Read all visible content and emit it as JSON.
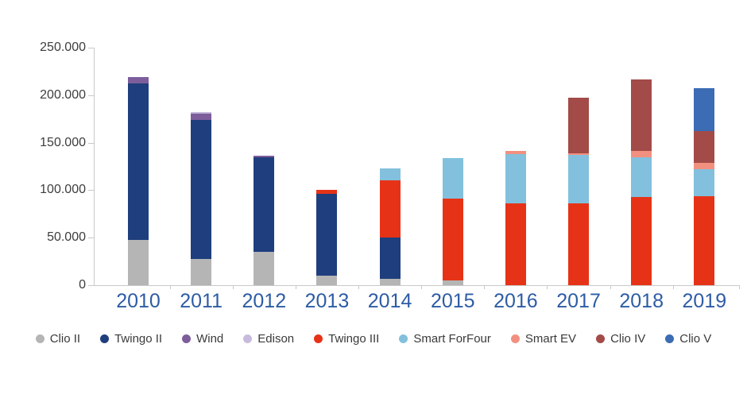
{
  "chart_data": {
    "type": "bar",
    "stacked": true,
    "title": "",
    "xlabel": "",
    "ylabel": "",
    "ylim": [
      0,
      250000
    ],
    "ytick_interval": 50000,
    "ytick_labels": [
      "0",
      "50.000",
      "100.000",
      "150.000",
      "200.000",
      "250.000"
    ],
    "grid": false,
    "legend_position": "bottom",
    "categories": [
      "2010",
      "2011",
      "2012",
      "2013",
      "2014",
      "2015",
      "2016",
      "2017",
      "2018",
      "2019"
    ],
    "series": [
      {
        "name": "Clio II",
        "color": "#b5b5b5",
        "values": [
          48000,
          28000,
          35000,
          10000,
          7000,
          5000,
          0,
          0,
          0,
          0
        ]
      },
      {
        "name": "Twingo II",
        "color": "#1f3e7d",
        "values": [
          164000,
          146000,
          100000,
          86000,
          43000,
          0,
          0,
          0,
          0,
          0
        ]
      },
      {
        "name": "Wind",
        "color": "#7d5d9b",
        "values": [
          7000,
          6500,
          1000,
          0,
          0,
          0,
          0,
          0,
          0,
          0
        ]
      },
      {
        "name": "Edison",
        "color": "#c7bbdd",
        "values": [
          0,
          1500,
          0,
          0,
          0,
          0,
          0,
          0,
          0,
          0
        ]
      },
      {
        "name": "Twingo III",
        "color": "#e63317",
        "values": [
          0,
          0,
          0,
          4000,
          60000,
          86000,
          86000,
          86000,
          93000,
          94000
        ]
      },
      {
        "name": "Smart ForFour",
        "color": "#82c0dd",
        "values": [
          0,
          0,
          0,
          0,
          13000,
          43000,
          52000,
          51000,
          42000,
          28000
        ]
      },
      {
        "name": "Smart EV",
        "color": "#f2907f",
        "values": [
          0,
          0,
          0,
          0,
          0,
          0,
          3000,
          2000,
          6000,
          7000
        ]
      },
      {
        "name": "Clio IV",
        "color": "#a34b48",
        "values": [
          0,
          0,
          0,
          0,
          0,
          0,
          0,
          58000,
          76000,
          33000
        ]
      },
      {
        "name": "Clio V",
        "color": "#3b6cb4",
        "values": [
          0,
          0,
          0,
          0,
          0,
          0,
          0,
          0,
          0,
          45000
        ]
      }
    ]
  },
  "colors": {
    "background": "#ffffff",
    "axis": "#c9c9c9",
    "y_label_text": "#3d3d3d",
    "x_label_text": "#2d5ca4",
    "legend_text": "#3a3a3a"
  }
}
